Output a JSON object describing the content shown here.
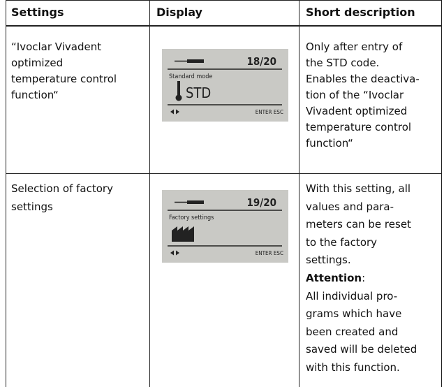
{
  "header": {
    "settings": "Settings",
    "display": "Display",
    "description": "Short description"
  },
  "rows": [
    {
      "setting": [
        "“Ivoclar Vivadent",
        "optimized",
        "temperature control",
        "function“"
      ],
      "display": {
        "counter": "18/20",
        "mode": "Standard mode",
        "value": "STD",
        "keys": "ENTER ESC"
      },
      "description": [
        "Only after entry of",
        "the STD code.",
        "Enables the deactiva-",
        "tion of the “Ivoclar",
        "Vivadent optimized",
        "temperature control",
        "function“"
      ]
    },
    {
      "setting": [
        "Selection of factory",
        "settings"
      ],
      "display": {
        "counter": "19/20",
        "mode": "Factory settings",
        "keys": "ENTER ESC"
      },
      "description": [
        "With this setting, all",
        "values and para-",
        "meters can be reset",
        "to the factory",
        "settings."
      ],
      "attention": "Attention",
      "attention_suffix": ":",
      "note": [
        "All individual pro-",
        "grams which have",
        "been created and",
        "saved will be deleted",
        "with this function."
      ]
    }
  ]
}
